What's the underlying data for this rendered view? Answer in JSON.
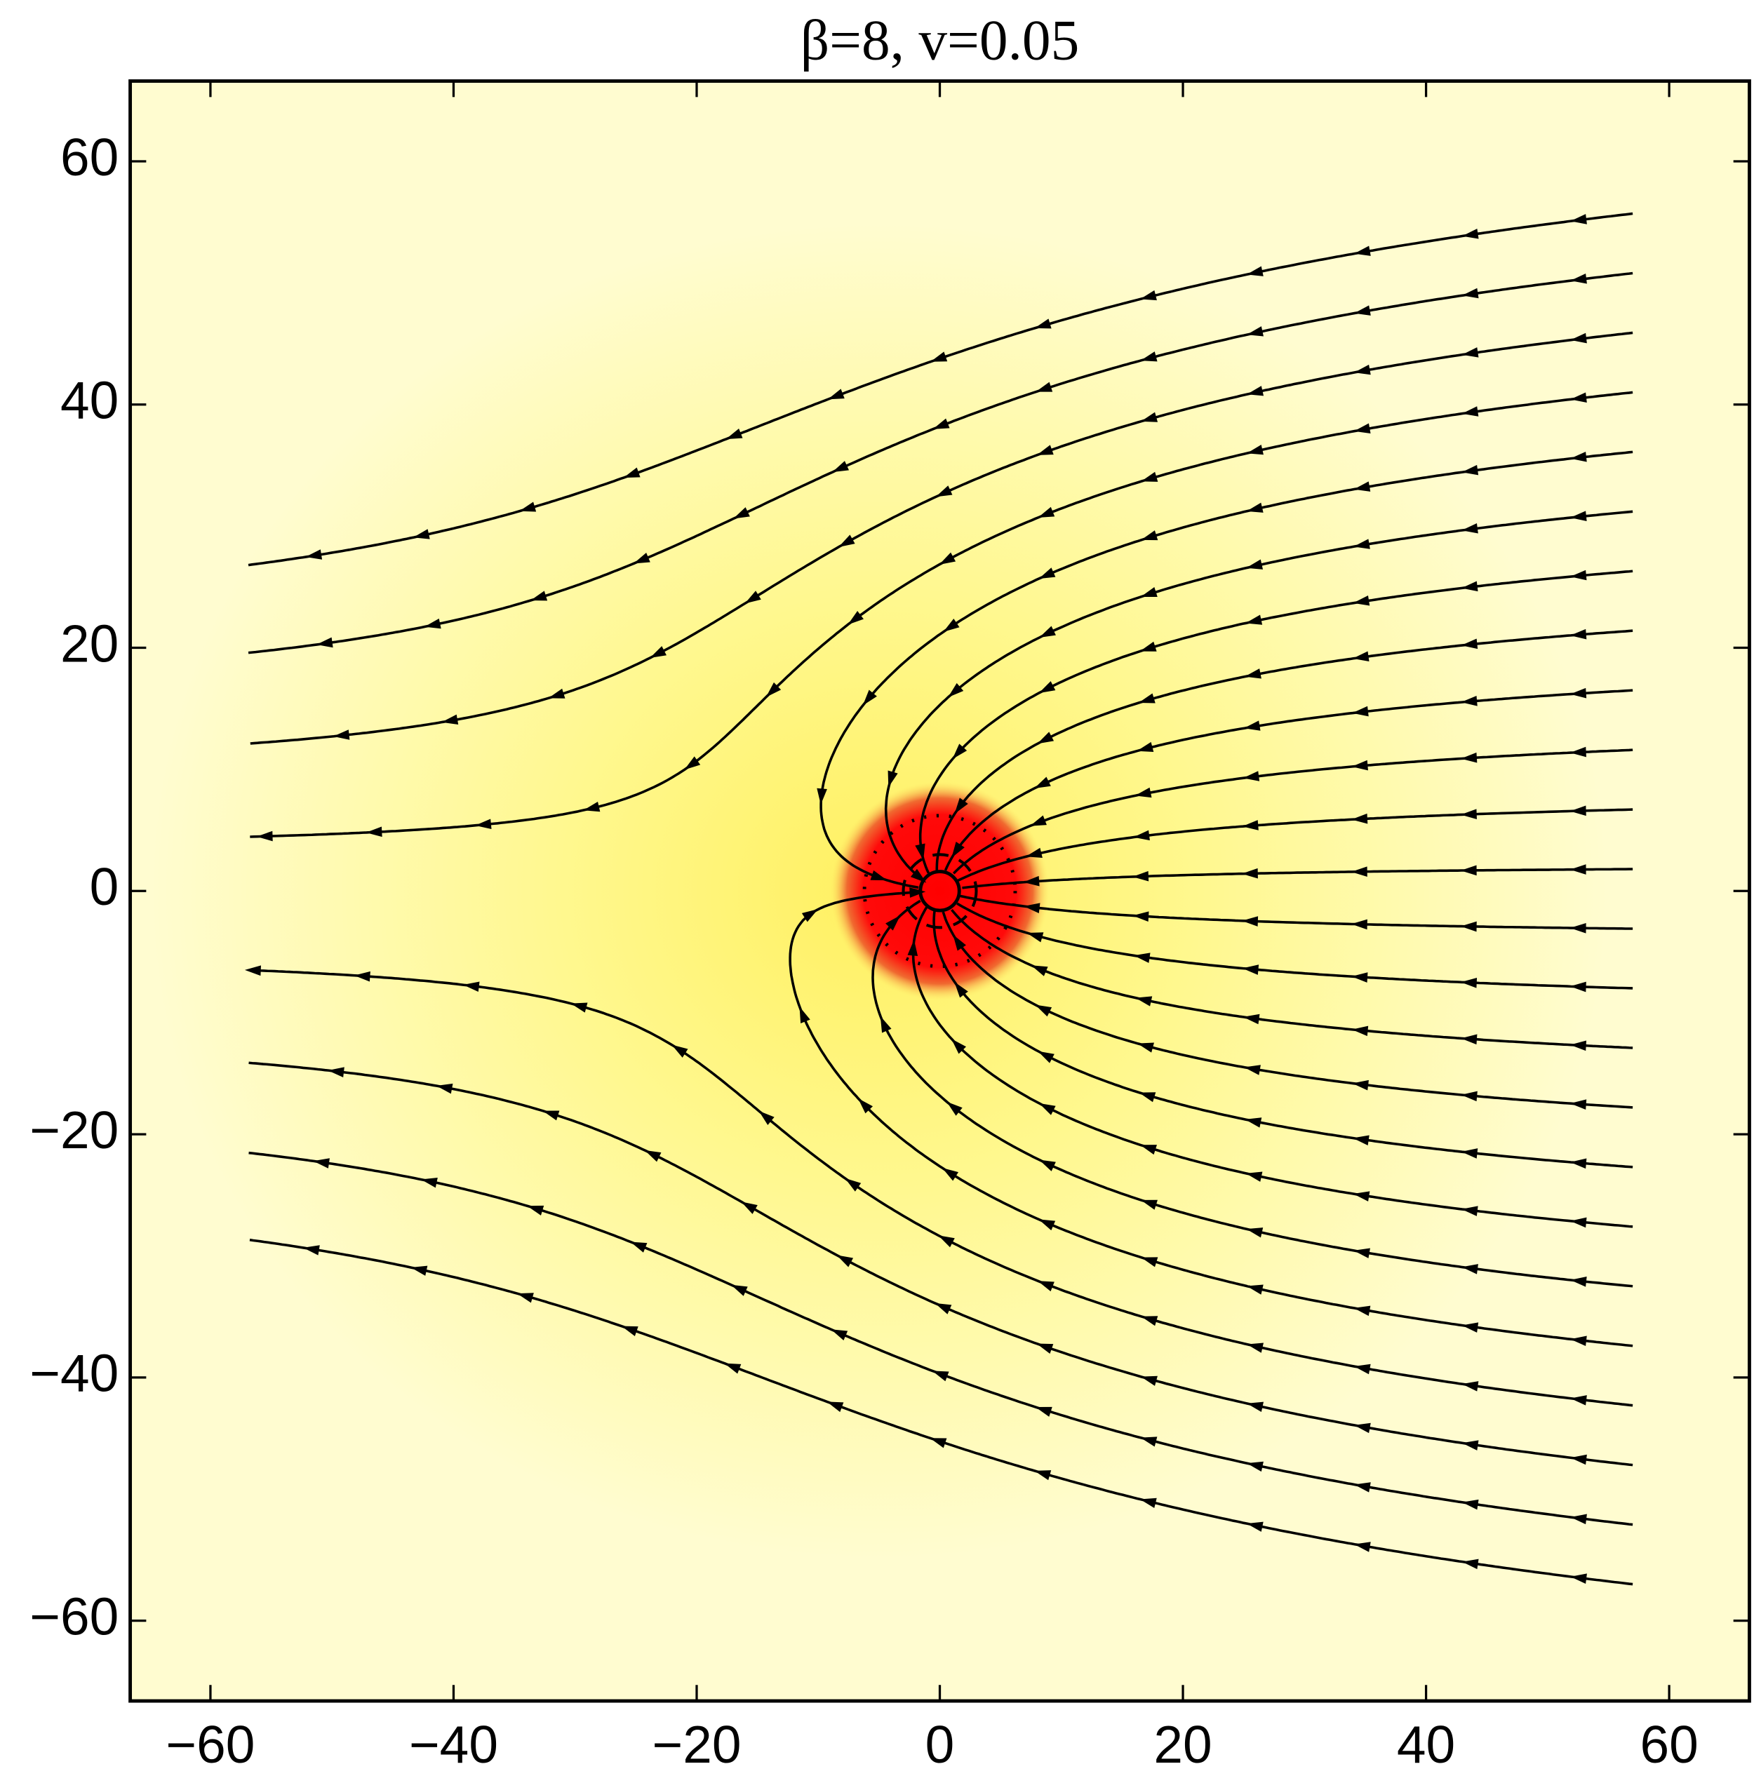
{
  "chart_data": {
    "type": "stream",
    "title": "β=8, v=0.05",
    "xlim": [
      -66.6,
      66.6
    ],
    "ylim": [
      -66.6,
      66.6
    ],
    "xticks": [
      {
        "value": -60,
        "label": "−60"
      },
      {
        "value": -40,
        "label": "−40"
      },
      {
        "value": -20,
        "label": "−20"
      },
      0,
      20,
      40,
      60
    ],
    "yticks": [
      {
        "value": -60,
        "label": "−60"
      },
      {
        "value": -40,
        "label": "−40"
      },
      {
        "value": -20,
        "label": "−20"
      },
      0,
      20,
      40,
      60
    ]
  }
}
